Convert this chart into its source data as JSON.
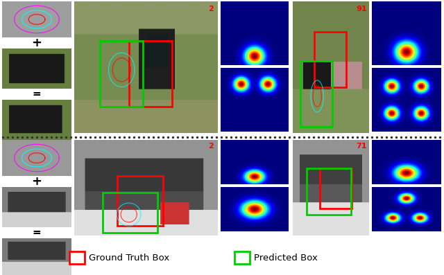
{
  "fig_width": 6.4,
  "fig_height": 3.97,
  "bg_color": "#ffffff",
  "row1_frame_num_left": "2",
  "row1_frame_num_right": "91",
  "row2_frame_num_left": "2",
  "row2_frame_num_right": "71",
  "legend_gt": "Ground Truth Box",
  "legend_pred": "Predicted Box",
  "gt_color": "#ff0000",
  "pred_color": "#00cc00",
  "frame_num_color": "#ff0000",
  "dot_color": "#333333"
}
